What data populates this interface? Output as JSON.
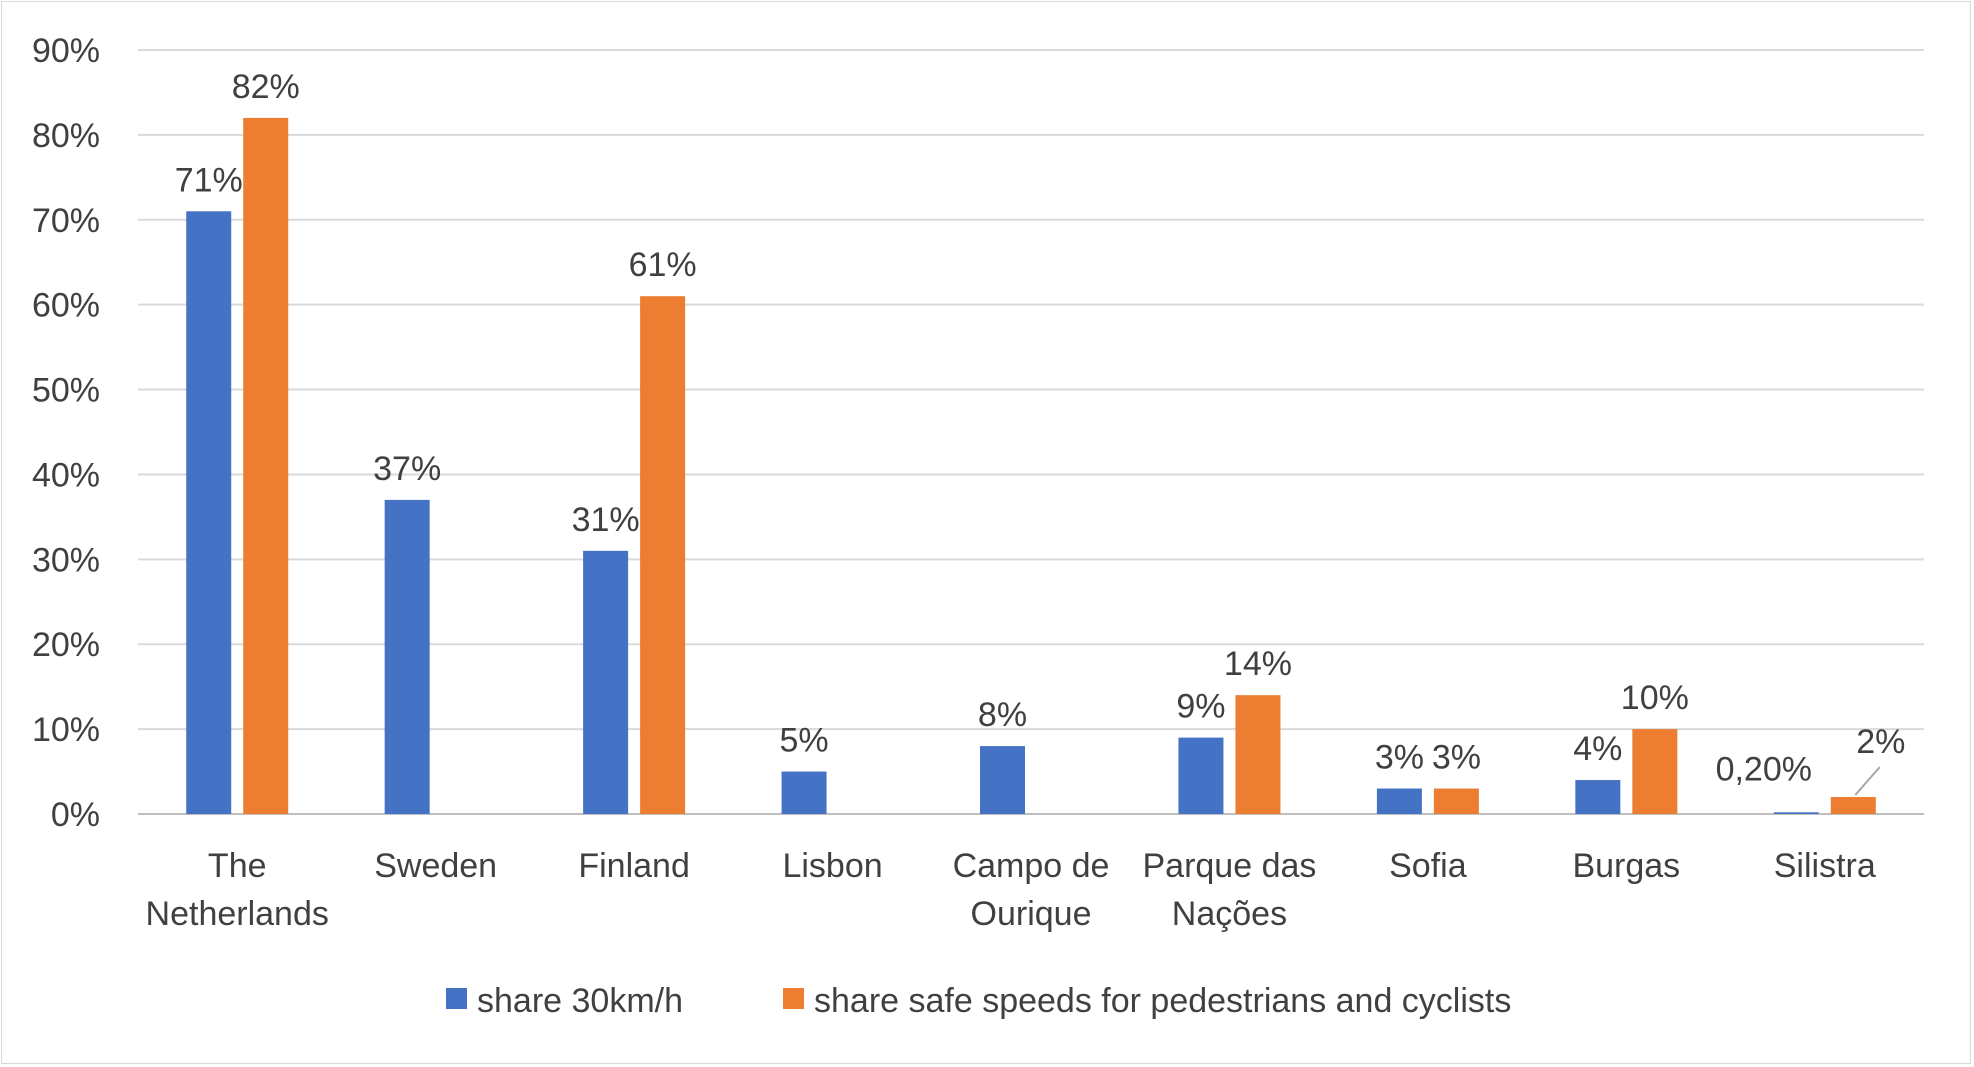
{
  "chart_data": {
    "type": "bar",
    "categories": [
      [
        "The",
        "Netherlands"
      ],
      [
        "Sweden"
      ],
      [
        "Finland"
      ],
      [
        "Lisbon"
      ],
      [
        "Campo de",
        "Ourique"
      ],
      [
        "Parque das",
        "Nações"
      ],
      [
        "Sofia"
      ],
      [
        "Burgas"
      ],
      [
        "Silistra"
      ]
    ],
    "series": [
      {
        "name": "share 30km/h",
        "color": "#4472c4",
        "values": [
          71,
          37,
          31,
          5,
          8,
          9,
          3,
          4,
          0.2
        ],
        "labels": [
          "71%",
          "37%",
          "31%",
          "5%",
          "8%",
          "9%",
          "3%",
          "4%",
          "0,20%"
        ]
      },
      {
        "name": "share safe speeds for pedestrians and cyclists",
        "color": "#ed7d31",
        "values": [
          82,
          null,
          61,
          null,
          null,
          14,
          3,
          10,
          2
        ],
        "labels": [
          "82%",
          null,
          "61%",
          null,
          null,
          "14%",
          "3%",
          "10%",
          "2%"
        ]
      }
    ],
    "ylim": [
      0,
      90
    ],
    "yticks": [
      "0%",
      "10%",
      "20%",
      "30%",
      "40%",
      "50%",
      "60%",
      "70%",
      "80%",
      "90%"
    ],
    "grid": true,
    "legend": "bottom",
    "title": "",
    "xlabel": "",
    "ylabel": ""
  }
}
